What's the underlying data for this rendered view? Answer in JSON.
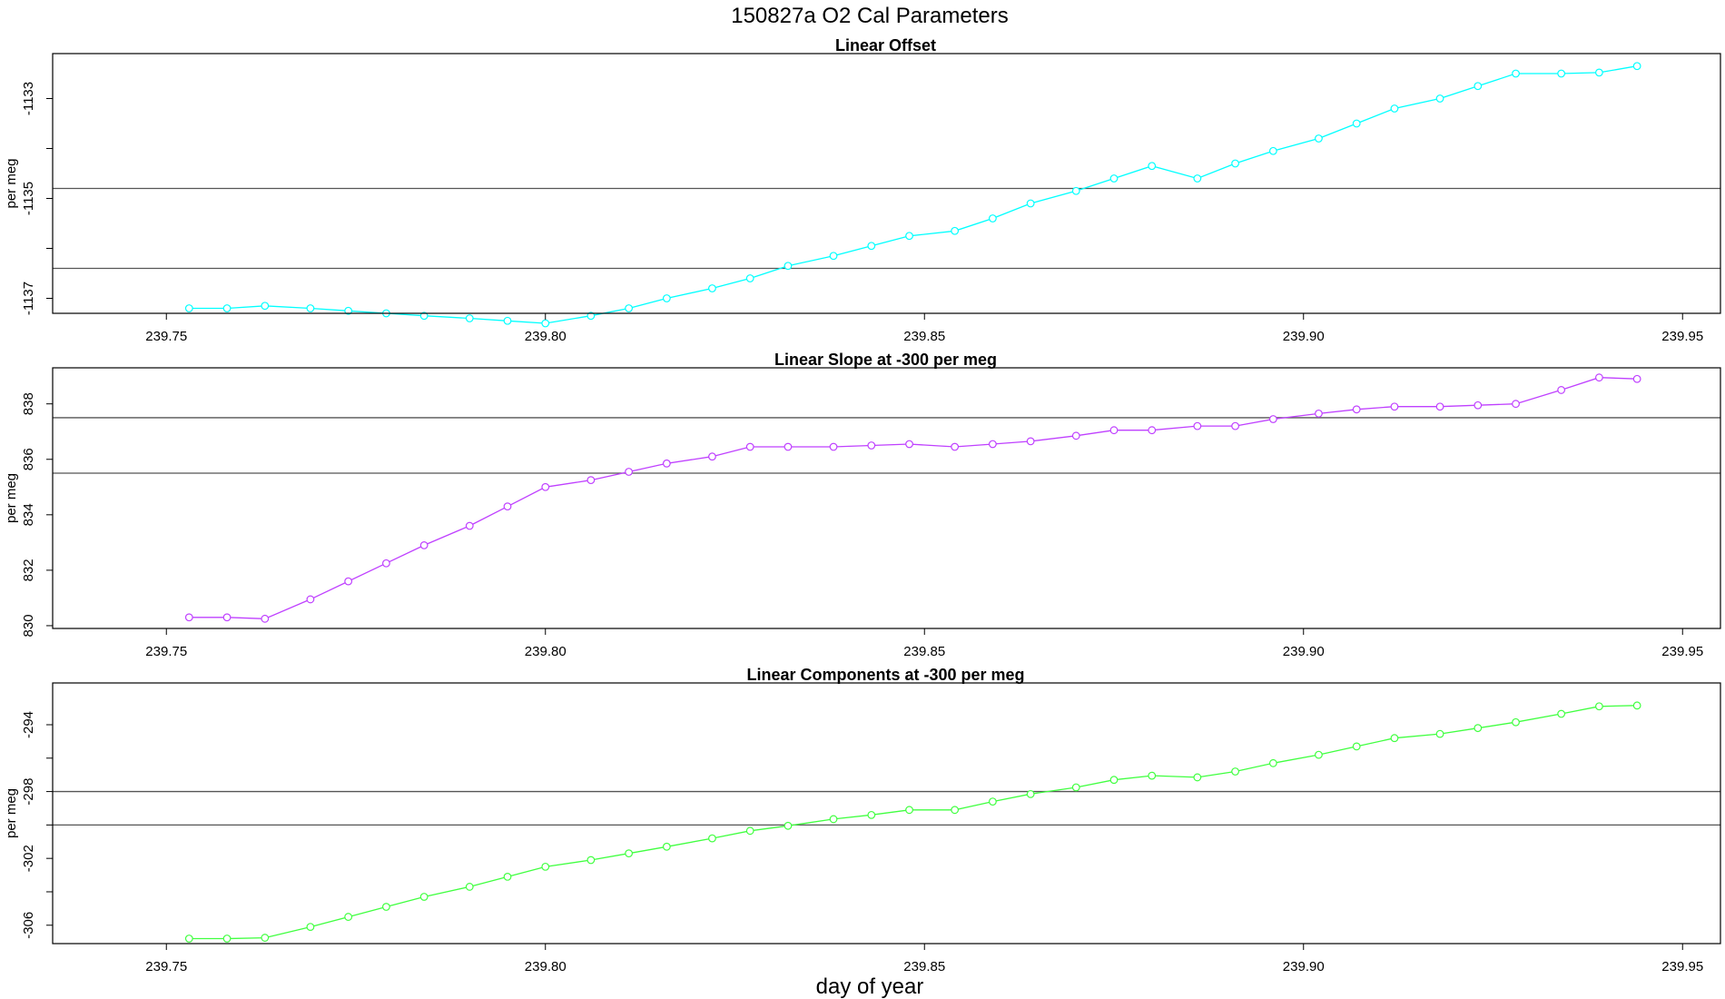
{
  "figure": {
    "title": "150827a   O2 Cal Parameters",
    "xlabel": "day of year"
  },
  "chart_data": [
    {
      "type": "line",
      "title": "Linear Offset",
      "ylabel": "per meg",
      "color": "#00ffff",
      "xlim": [
        239.735,
        239.955
      ],
      "ylim": [
        -1137.3,
        -1132.1
      ],
      "xticks": [
        239.75,
        239.8,
        239.85,
        239.9,
        239.95
      ],
      "xtick_labels": [
        "239.75",
        "239.80",
        "239.85",
        "239.90",
        "239.95"
      ],
      "yticks": [
        -1137,
        -1136,
        -1135,
        -1134,
        -1133
      ],
      "ytick_labels": [
        "-1137",
        "",
        "-1135",
        "",
        "-1133"
      ],
      "hlines": [
        -1134.8,
        -1136.4
      ],
      "x": [
        239.753,
        239.758,
        239.763,
        239.769,
        239.774,
        239.779,
        239.784,
        239.79,
        239.795,
        239.8,
        239.806,
        239.811,
        239.816,
        239.822,
        239.827,
        239.832,
        239.838,
        239.843,
        239.848,
        239.854,
        239.859,
        239.864,
        239.87,
        239.875,
        239.88,
        239.886,
        239.891,
        239.896,
        239.902,
        239.907,
        239.912,
        239.918,
        239.923,
        239.928,
        239.934,
        239.939,
        239.944
      ],
      "y": [
        -1137.2,
        -1137.2,
        -1137.15,
        -1137.2,
        -1137.25,
        -1137.3,
        -1137.35,
        -1137.4,
        -1137.45,
        -1137.5,
        -1137.35,
        -1137.2,
        -1137.0,
        -1136.8,
        -1136.6,
        -1136.35,
        -1136.15,
        -1135.95,
        -1135.75,
        -1135.65,
        -1135.4,
        -1135.1,
        -1134.85,
        -1134.6,
        -1134.35,
        -1134.6,
        -1134.3,
        -1134.05,
        -1133.8,
        -1133.5,
        -1133.2,
        -1133.0,
        -1132.75,
        -1132.5,
        -1132.5,
        -1132.48,
        -1132.35
      ]
    },
    {
      "type": "line",
      "title": "Linear Slope at -300 per meg",
      "ylabel": "per meg",
      "color": "#bf40ff",
      "xlim": [
        239.735,
        239.955
      ],
      "ylim": [
        829.9,
        839.3
      ],
      "xticks": [
        239.75,
        239.8,
        239.85,
        239.9,
        239.95
      ],
      "xtick_labels": [
        "239.75",
        "239.80",
        "239.85",
        "239.90",
        "239.95"
      ],
      "yticks": [
        830,
        832,
        834,
        836,
        838
      ],
      "ytick_labels": [
        "830",
        "832",
        "834",
        "836",
        "838"
      ],
      "hlines": [
        837.5,
        835.5
      ],
      "x": [
        239.753,
        239.758,
        239.763,
        239.769,
        239.774,
        239.779,
        239.784,
        239.79,
        239.795,
        239.8,
        239.806,
        239.811,
        239.816,
        239.822,
        239.827,
        239.832,
        239.838,
        239.843,
        239.848,
        239.854,
        239.859,
        239.864,
        239.87,
        239.875,
        239.88,
        239.886,
        239.891,
        239.896,
        239.902,
        239.907,
        239.912,
        239.918,
        239.923,
        239.928,
        239.934,
        239.939,
        239.944
      ],
      "y": [
        830.3,
        830.3,
        830.25,
        830.95,
        831.6,
        832.25,
        832.9,
        833.6,
        834.3,
        835.0,
        835.25,
        835.55,
        835.85,
        836.1,
        836.45,
        836.45,
        836.45,
        836.5,
        836.55,
        836.45,
        836.55,
        836.65,
        836.85,
        837.05,
        837.05,
        837.2,
        837.2,
        837.45,
        837.65,
        837.8,
        837.9,
        837.9,
        837.95,
        838.0,
        838.5,
        838.95,
        838.9
      ]
    },
    {
      "type": "line",
      "title": "Linear Components at -300 per meg",
      "ylabel": "per meg",
      "color": "#40ff40",
      "xlim": [
        239.735,
        239.955
      ],
      "ylim": [
        -307.1,
        -291.5
      ],
      "xticks": [
        239.75,
        239.8,
        239.85,
        239.9,
        239.95
      ],
      "xtick_labels": [
        "239.75",
        "239.80",
        "239.85",
        "239.90",
        "239.95"
      ],
      "yticks": [
        -306,
        -304,
        -302,
        -300,
        -298,
        -296,
        -294
      ],
      "ytick_labels": [
        "-306",
        "",
        "-302",
        "",
        "-298",
        "",
        "-294"
      ],
      "hlines": [
        -298.0,
        -300.0
      ],
      "x": [
        239.753,
        239.758,
        239.763,
        239.769,
        239.774,
        239.779,
        239.784,
        239.79,
        239.795,
        239.8,
        239.806,
        239.811,
        239.816,
        239.822,
        239.827,
        239.832,
        239.838,
        239.843,
        239.848,
        239.854,
        239.859,
        239.864,
        239.87,
        239.875,
        239.88,
        239.886,
        239.891,
        239.896,
        239.902,
        239.907,
        239.912,
        239.918,
        239.923,
        239.928,
        239.934,
        239.939,
        239.944
      ],
      "y": [
        -306.8,
        -306.8,
        -306.75,
        -306.1,
        -305.5,
        -304.9,
        -304.3,
        -303.7,
        -303.1,
        -302.5,
        -302.1,
        -301.7,
        -301.3,
        -300.8,
        -300.35,
        -300.05,
        -299.65,
        -299.4,
        -299.1,
        -299.1,
        -298.6,
        -298.15,
        -297.75,
        -297.3,
        -297.05,
        -297.15,
        -296.8,
        -296.3,
        -295.8,
        -295.3,
        -294.8,
        -294.55,
        -294.2,
        -293.85,
        -293.35,
        -292.9,
        -292.85
      ]
    }
  ]
}
